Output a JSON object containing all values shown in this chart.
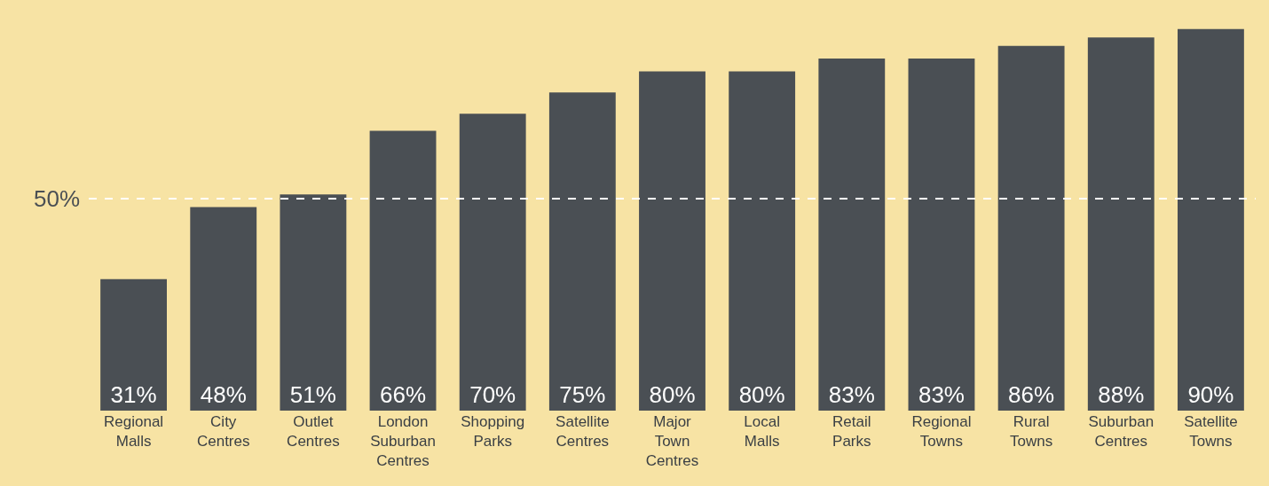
{
  "chart_data": {
    "type": "bar",
    "categories": [
      "Regional Malls",
      "City Centres",
      "Outlet Centres",
      "London Suburban Centres",
      "Shopping Parks",
      "Satellite Centres",
      "Major Town Centres",
      "Local Malls",
      "Retail Parks",
      "Regional Towns",
      "Rural Towns",
      "Suburban Centres",
      "Satellite Towns"
    ],
    "values": [
      31,
      48,
      51,
      66,
      70,
      75,
      80,
      80,
      83,
      83,
      86,
      88,
      90
    ],
    "value_labels": [
      "31%",
      "48%",
      "51%",
      "66%",
      "70%",
      "75%",
      "80%",
      "80%",
      "83%",
      "83%",
      "86%",
      "88%",
      "90%"
    ],
    "color": "#4a4f54",
    "ref_lines": [
      {
        "axis": "y",
        "value": 50,
        "label": "50%",
        "color": "#ffffff",
        "line_style": "dashed"
      }
    ],
    "grid": false,
    "legend": false
  }
}
